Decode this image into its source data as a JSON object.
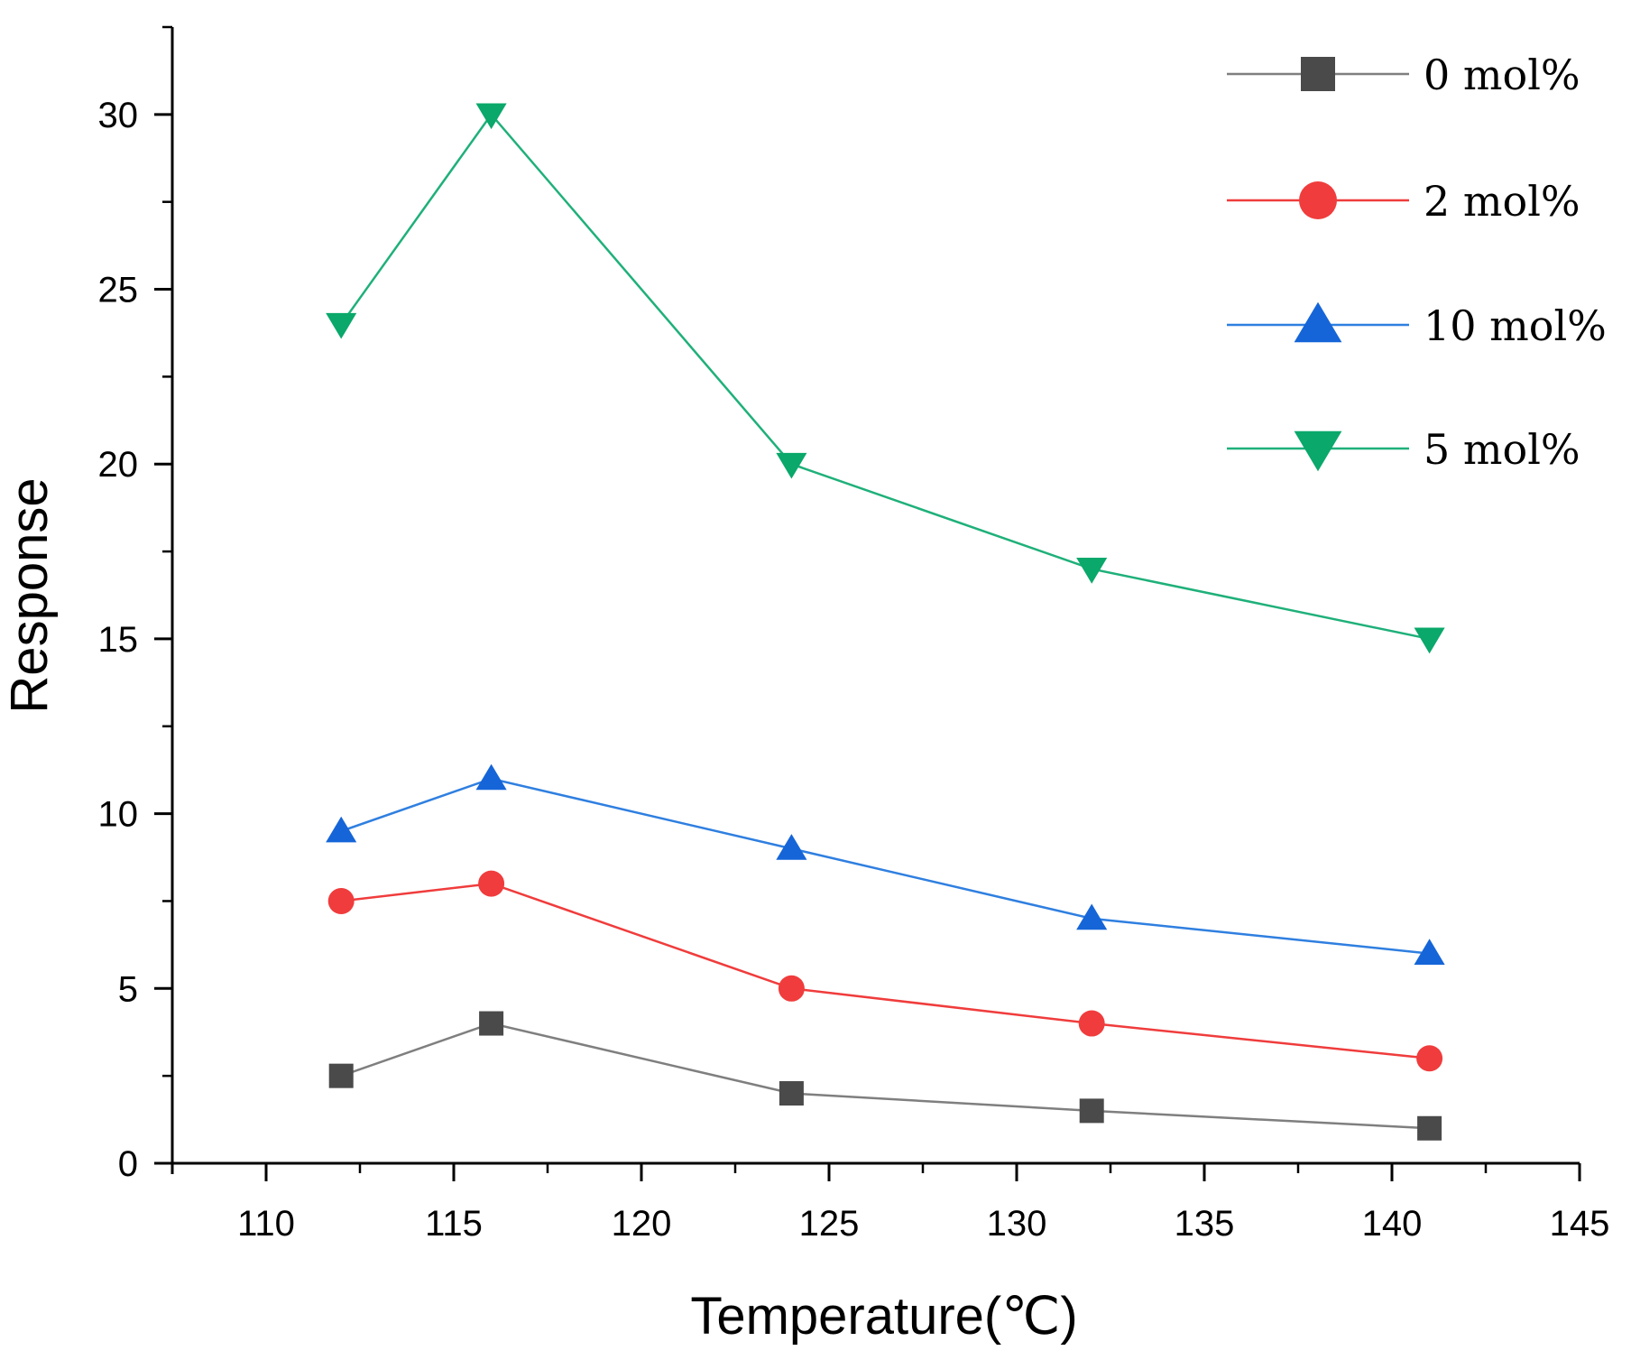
{
  "chart_data": {
    "type": "line",
    "title": "",
    "xlabel": "Temperature(℃)",
    "ylabel": "Response",
    "xlim": [
      107.5,
      145
    ],
    "ylim": [
      0,
      32.5
    ],
    "xticks": [
      110,
      115,
      120,
      125,
      130,
      135,
      140,
      145
    ],
    "yticks": [
      0,
      5,
      10,
      15,
      20,
      25,
      30
    ],
    "xtick_labels": [
      "110",
      "115",
      "120",
      "125",
      "130",
      "135",
      "140",
      "145"
    ],
    "ytick_labels": [
      "0",
      "5",
      "10",
      "15",
      "20",
      "25",
      "30"
    ],
    "grid": false,
    "legend_position": "top-right",
    "x": [
      112,
      116,
      124,
      132,
      141
    ],
    "series": [
      {
        "name": "0 mol%",
        "label": "0 mol%",
        "marker": "square",
        "color": "#4a4a4a",
        "line_color": "#7f7f7f",
        "values": [
          2.5,
          4,
          2,
          1.5,
          1
        ]
      },
      {
        "name": "2 mol%",
        "label": "2 mol%",
        "marker": "circle",
        "color": "#f03c3c",
        "line_color": "#f03c3c",
        "values": [
          7.5,
          8,
          5,
          4,
          3
        ]
      },
      {
        "name": "10 mol%",
        "label": "10 mol%",
        "marker": "triangle-up",
        "color": "#1565d8",
        "line_color": "#2f7fe0",
        "values": [
          9.5,
          11,
          9,
          7,
          6
        ]
      },
      {
        "name": "5 mol%",
        "label": "5 mol%",
        "marker": "triangle-down",
        "color": "#0aa86a",
        "line_color": "#1fb07a",
        "values": [
          24,
          30,
          20,
          17,
          15
        ]
      }
    ]
  }
}
